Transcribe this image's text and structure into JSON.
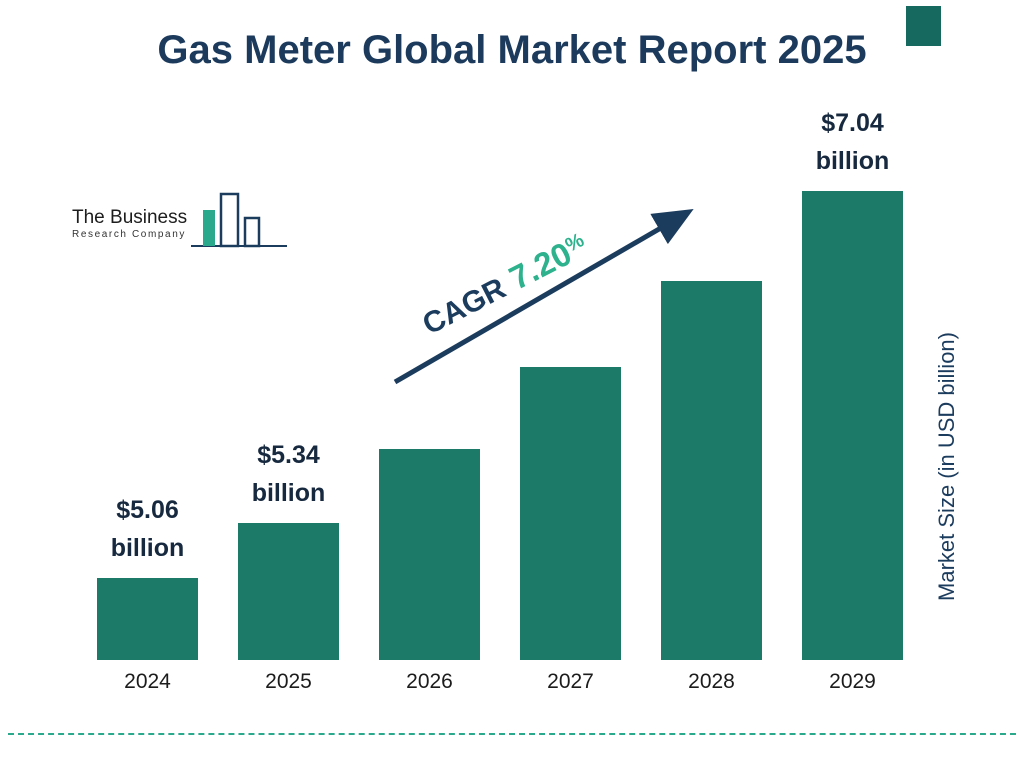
{
  "logo": {
    "line1": "The Business",
    "line2": "Research Company"
  },
  "colors": {
    "bar_teal": "#1b7a68",
    "accent_green": "#2eb18d",
    "navy": "#1b3a5c",
    "corner_square": "#15695f",
    "divider_teal": "#2aa98c"
  },
  "chart_data": {
    "type": "bar",
    "title": "Gas Meter Global Market Report 2025",
    "categories": [
      "2024",
      "2025",
      "2026",
      "2027",
      "2028",
      "2029"
    ],
    "values": [
      5.06,
      5.34,
      5.72,
      6.14,
      6.58,
      7.04
    ],
    "values_unit": "USD billion",
    "value_labels": [
      "$5.06\nbillion",
      "$5.34\nbillion",
      null,
      null,
      null,
      "$7.04\nbillion"
    ],
    "cagr": {
      "label": "CAGR",
      "value": "7.20",
      "suffix": "%"
    },
    "xlabel": "",
    "ylabel": "Market Size (in USD billion)",
    "ylim": [
      4.64,
      7.2
    ],
    "grid": false,
    "legend": "none",
    "bar_color": "#1b7a68"
  }
}
